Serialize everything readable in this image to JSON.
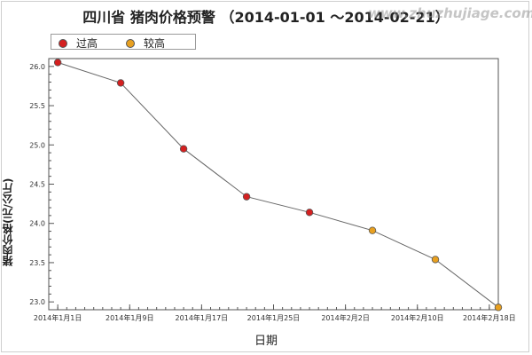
{
  "title": "四川省 猪肉价格预警 （2014-01-01 ～2014-02-21）",
  "watermark": "www.zhuzhujiage.com",
  "colors": {
    "over_high": "#d42020",
    "high": "#e8a020",
    "line": "#666666"
  },
  "legend": [
    {
      "label": "过高",
      "color": "#d42020"
    },
    {
      "label": "较高",
      "color": "#e8a020"
    }
  ],
  "chart_data": {
    "type": "line",
    "title": "四川省 猪肉价格预警 （2014-01-01 ～2014-02-21）",
    "xlabel": "日期",
    "ylabel": "猪肉价格(元/公斤)",
    "ylim": [
      22.9,
      26.1
    ],
    "y_ticks": [
      "23.0",
      "23.5",
      "24.0",
      "24.5",
      "25.0",
      "25.5",
      "26.0"
    ],
    "x_ticks": [
      "2014年1月1日",
      "2014年1月9日",
      "2014年1月17日",
      "2014年1月25日",
      "2014年2月2日",
      "2014年2月10日",
      "2014年2月18日"
    ],
    "x_tick_dates": [
      "2014-01-01",
      "2014-01-09",
      "2014-01-17",
      "2014-01-25",
      "2014-02-02",
      "2014-02-10",
      "2014-02-18"
    ],
    "xlim": [
      "2013-12-31",
      "2014-02-19"
    ],
    "grid": false,
    "legend_position": "top-left",
    "series": [
      {
        "points": [
          {
            "x": "2014-01-01",
            "y": 26.05,
            "level": "过高"
          },
          {
            "x": "2014-01-08",
            "y": 25.79,
            "level": "过高"
          },
          {
            "x": "2014-01-15",
            "y": 24.95,
            "level": "过高"
          },
          {
            "x": "2014-01-22",
            "y": 24.34,
            "level": "过高"
          },
          {
            "x": "2014-01-29",
            "y": 24.14,
            "level": "过高"
          },
          {
            "x": "2014-02-05",
            "y": 23.91,
            "level": "较高"
          },
          {
            "x": "2014-02-12",
            "y": 23.54,
            "level": "较高"
          },
          {
            "x": "2014-02-19",
            "y": 22.93,
            "level": "较高"
          }
        ]
      }
    ]
  }
}
